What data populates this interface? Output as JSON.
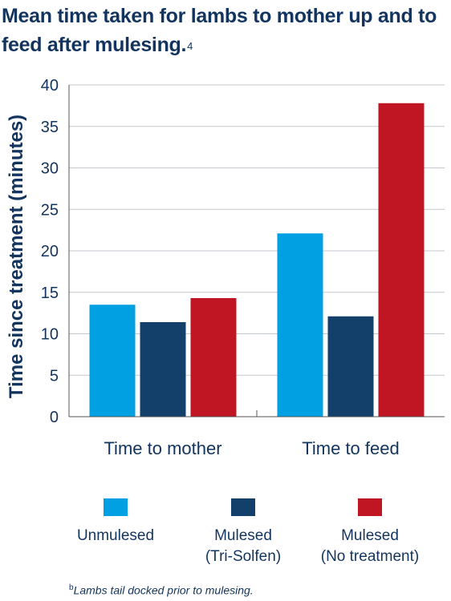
{
  "title": "Mean time taken for lambs to mother up and to feed after mulesing.",
  "title_ref": "4",
  "footnote": {
    "marker": "b",
    "text": "Lambs tail docked prior to mulesing."
  },
  "chart_data": {
    "type": "bar",
    "title": "Mean time taken for lambs to mother up and to feed after mulesing.",
    "xlabel": "",
    "ylabel": "Time since treatment (minutes)",
    "ylim": [
      0,
      40
    ],
    "yticks": [
      0,
      5,
      10,
      15,
      20,
      25,
      30,
      35,
      40
    ],
    "categories": [
      "Time to mother",
      "Time to feed"
    ],
    "series": [
      {
        "name": "Unmulesed",
        "color": "#00a0e3",
        "values": [
          13.5,
          22.1
        ]
      },
      {
        "name": "Mulesed (Tri-Solfen)",
        "color": "#133f6b",
        "values": [
          11.4,
          12.1
        ]
      },
      {
        "name": "Mulesed (No treatment)",
        "color": "#c01522",
        "values": [
          14.3,
          37.8
        ]
      }
    ],
    "legend_position": "bottom",
    "grid": true
  },
  "legend": [
    {
      "line1": "Unmulesed",
      "line2": "",
      "color": "#00a0e3"
    },
    {
      "line1": "Mulesed",
      "line2": "(Tri-Solfen)",
      "color": "#133f6b"
    },
    {
      "line1": "Mulesed",
      "line2": "(No treatment)",
      "color": "#c01522"
    }
  ]
}
